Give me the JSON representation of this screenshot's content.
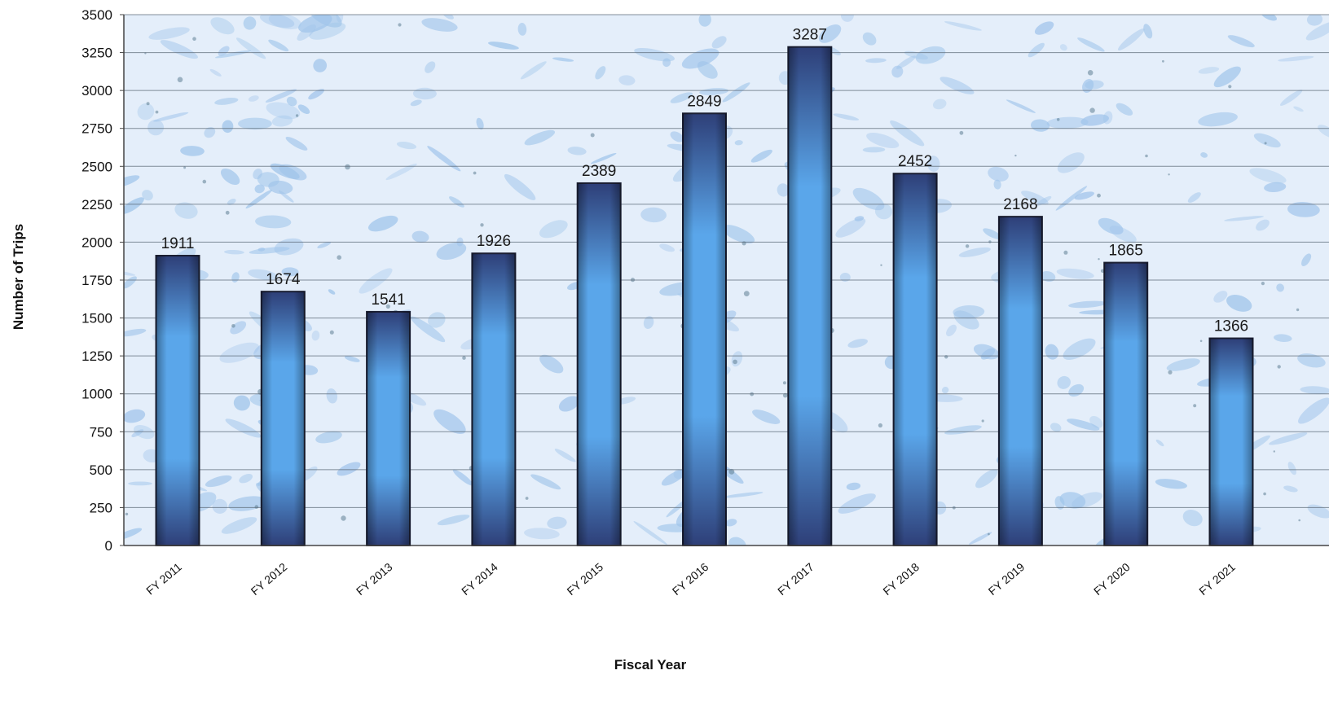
{
  "chart_data": {
    "type": "bar",
    "title": "",
    "xlabel": "Fiscal Year",
    "ylabel": "Number of Trips",
    "categories": [
      "FY 2011",
      "FY 2012",
      "FY 2013",
      "FY 2014",
      "FY 2015",
      "FY 2016",
      "FY 2017",
      "FY 2018",
      "FY 2019",
      "FY 2020",
      "FY 2021"
    ],
    "values": [
      1911,
      1674,
      1541,
      1926,
      2389,
      2849,
      3287,
      2452,
      2168,
      1865,
      1366
    ],
    "ylim": [
      0,
      3500
    ],
    "yticks": [
      0,
      250,
      500,
      750,
      1000,
      1250,
      1500,
      1750,
      2000,
      2250,
      2500,
      2750,
      3000,
      3250,
      3500
    ],
    "grid": true,
    "legend": "none",
    "data_labels": true,
    "colors": {
      "bar_dark": "#2e3f78",
      "bar_light": "#5aa6ea",
      "bar_outline": "#1b1f33",
      "plot_background": "#e4eefa",
      "background_pattern": "#9fc4ea",
      "gridline": "#5c6a78",
      "axis": "#444444"
    }
  }
}
